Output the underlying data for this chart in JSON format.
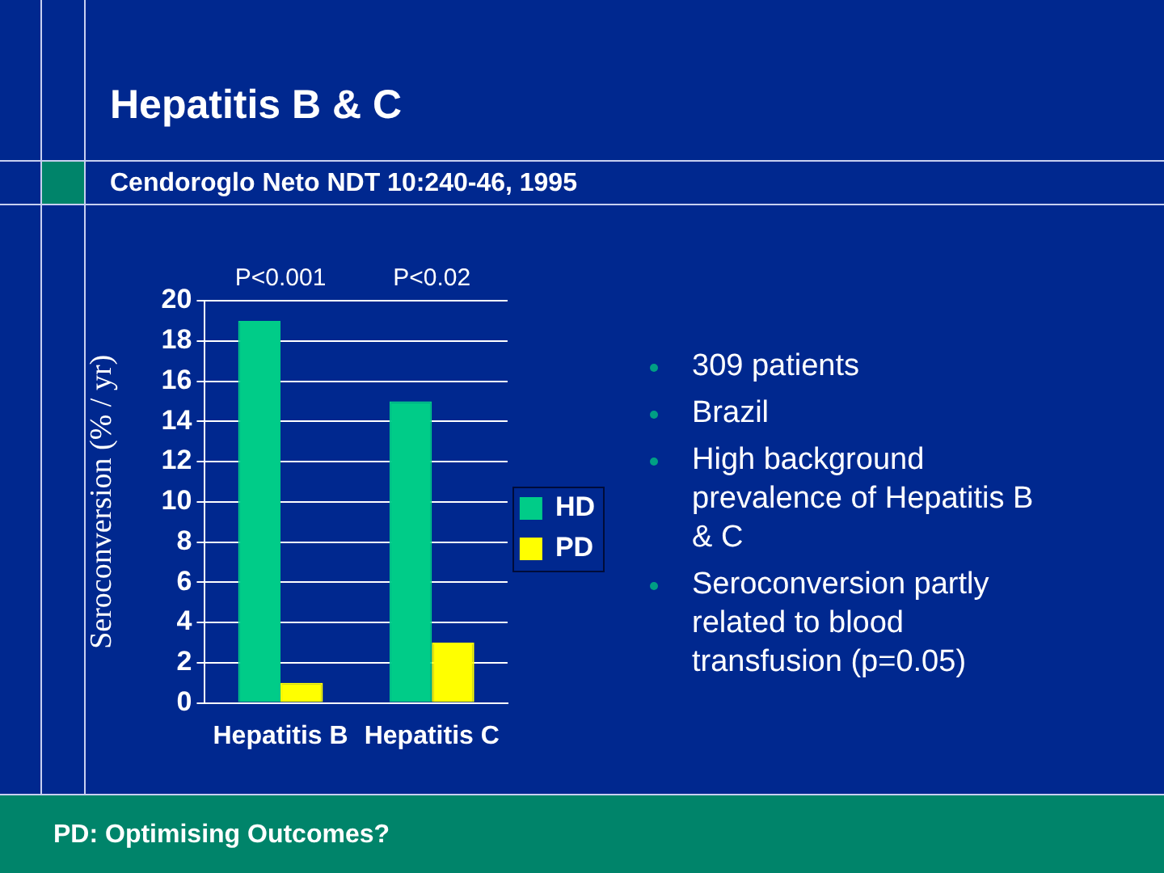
{
  "chart_data": {
    "type": "bar",
    "title": "Hepatitis B & C",
    "subtitle": "Cendoroglo Neto NDT 10:240-46, 1995",
    "ylabel": "Seroconversion (% / yr)",
    "categories": [
      "Hepatitis B",
      "Hepatitis C"
    ],
    "series": [
      {
        "name": "HD",
        "color": "#00cc88",
        "values": [
          19,
          15
        ]
      },
      {
        "name": "PD",
        "color": "#ffff00",
        "values": [
          1,
          3
        ]
      }
    ],
    "ylim": [
      0,
      20
    ],
    "yticks": [
      0,
      2,
      4,
      6,
      8,
      10,
      12,
      14,
      16,
      18,
      20
    ],
    "grid": "y",
    "legend": "right",
    "annotations": [
      "P<0.001",
      "P<0.02",
      "309 patients",
      "Brazil",
      "High background prevalence of Hepatitis B & C",
      "Seroconversion partly related to blood transfusion (p=0.05)",
      "PD: Optimising Outcomes?"
    ]
  }
}
